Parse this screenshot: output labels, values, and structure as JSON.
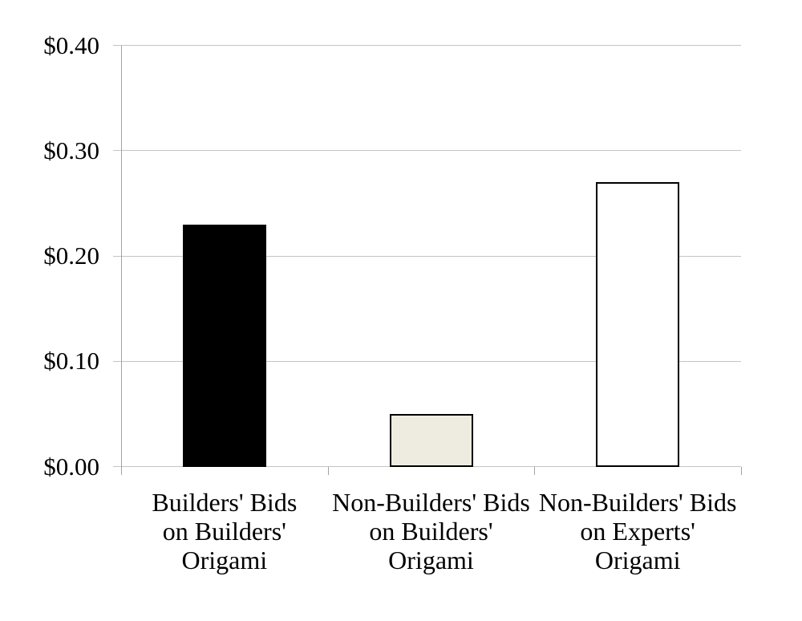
{
  "chart_data": {
    "type": "bar",
    "title": "",
    "xlabel": "",
    "ylabel": "",
    "categories": [
      "Builders' Bids\non Builders'\nOrigami",
      "Non-Builders' Bids\non Builders'\nOrigami",
      "Non-Builders' Bids\non Experts'\nOrigami"
    ],
    "values": [
      0.23,
      0.05,
      0.27
    ],
    "bar_colors": [
      "#000000",
      "#eeece0",
      "#ffffff"
    ],
    "bar_border_color": "#000000",
    "y_axis": {
      "min": 0.0,
      "max": 0.4,
      "ticks": [
        {
          "label": "$0.00",
          "value": 0.0
        },
        {
          "label": "$0.10",
          "value": 0.1
        },
        {
          "label": "$0.20",
          "value": 0.2
        },
        {
          "label": "$0.30",
          "value": 0.3
        },
        {
          "label": "$0.40",
          "value": 0.4
        }
      ]
    },
    "grid": "horizontal",
    "legend": "none",
    "background_color": "#ffffff",
    "gridline_color": "#c4c4c4",
    "axis_color": "#a2a2a2",
    "text_color": "#000000"
  }
}
